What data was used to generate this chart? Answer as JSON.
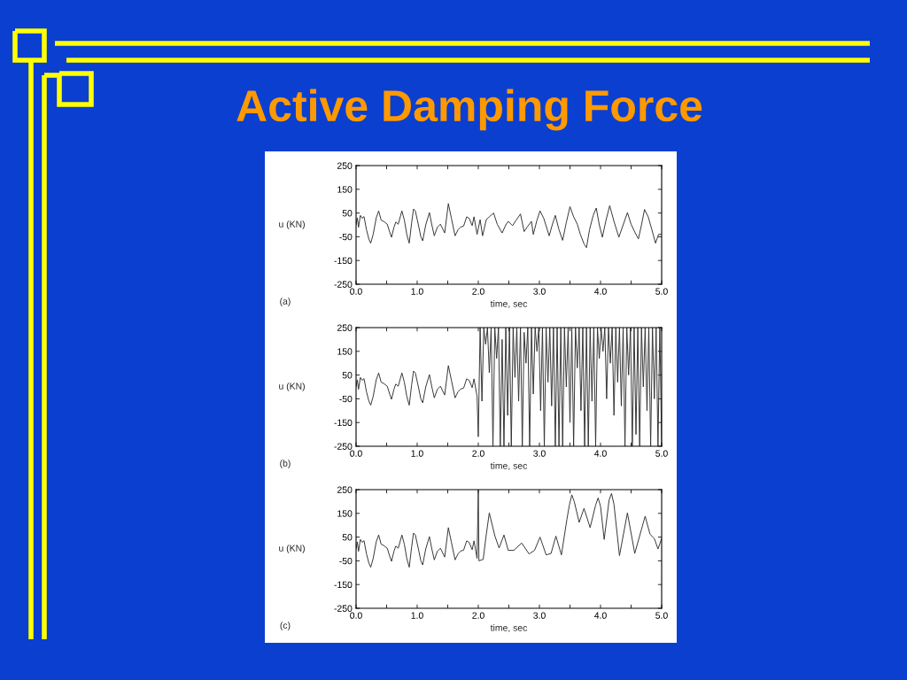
{
  "chart_data": [
    {
      "type": "line",
      "title": "Active Damping Force",
      "xlabel": "time, sec",
      "ylabel": "u (KN)",
      "annotations": [
        "(a)"
      ],
      "x": [
        0.0,
        0.02,
        0.04,
        0.07,
        0.1,
        0.13,
        0.17,
        0.21,
        0.24,
        0.28,
        0.33,
        0.37,
        0.41,
        0.45,
        0.51,
        0.55,
        0.58,
        0.62,
        0.65,
        0.69,
        0.75,
        0.79,
        0.83,
        0.87,
        0.91,
        0.94,
        0.97,
        1.02,
        1.06,
        1.09,
        1.14,
        1.2,
        1.24,
        1.28,
        1.33,
        1.38,
        1.45,
        1.51,
        1.56,
        1.62,
        1.67,
        1.71,
        1.76,
        1.81,
        1.85,
        1.9,
        1.93,
        1.98,
        2.03,
        2.07,
        2.13,
        2.18,
        2.25,
        2.31,
        2.39,
        2.45,
        2.49,
        2.56,
        2.62,
        2.69,
        2.75,
        2.8,
        2.87,
        2.9,
        2.96,
        3.01,
        3.07,
        3.16,
        3.21,
        3.26,
        3.32,
        3.38,
        3.44,
        3.5,
        3.56,
        3.62,
        3.67,
        3.73,
        3.77,
        3.82,
        3.88,
        3.93,
        3.98,
        4.03,
        4.09,
        4.15,
        4.22,
        4.3,
        4.37,
        4.44,
        4.5,
        4.56,
        4.62,
        4.67,
        4.72,
        4.78,
        4.84,
        4.9,
        4.95,
        5.0
      ],
      "series": [
        {
          "color": "#333333",
          "values": [
            0,
            30,
            -10,
            40,
            28,
            35,
            -20,
            -60,
            -77,
            -40,
            30,
            59,
            20,
            15,
            3,
            -30,
            -52,
            -10,
            12,
            3,
            59,
            20,
            -40,
            -77,
            10,
            67,
            59,
            0,
            -50,
            -67,
            0,
            52,
            0,
            -46,
            -10,
            3,
            -34,
            90,
            28,
            -46,
            -20,
            -9,
            -5,
            34,
            28,
            -3,
            34,
            -40,
            22,
            -46,
            22,
            34,
            50,
            3,
            -34,
            0,
            15,
            -3,
            20,
            46,
            -28,
            -9,
            15,
            -40,
            20,
            59,
            28,
            -46,
            0,
            40,
            -20,
            -65,
            10,
            77,
            34,
            3,
            -40,
            -80,
            -96,
            -20,
            40,
            71,
            0,
            -52,
            20,
            81,
            15,
            -52,
            0,
            52,
            3,
            -30,
            -59,
            0,
            65,
            34,
            -20,
            -77,
            -40,
            -40
          ]
        }
      ],
      "xlim": [
        0,
        5
      ],
      "ylim": [
        -250,
        250
      ],
      "xticks": [
        {
          "value": 0,
          "label": "0.0"
        },
        {
          "value": 0.5,
          "label": null
        },
        {
          "value": 1,
          "label": "1.0"
        },
        {
          "value": 1.5,
          "label": null
        },
        {
          "value": 2,
          "label": "2.0"
        },
        {
          "value": 2.5,
          "label": null
        },
        {
          "value": 3,
          "label": "3.0"
        },
        {
          "value": 3.5,
          "label": null
        },
        {
          "value": 4,
          "label": "4.0"
        },
        {
          "value": 4.5,
          "label": null
        },
        {
          "value": 5,
          "label": "5.0"
        }
      ],
      "yticks": [
        250,
        150,
        50,
        -50,
        -150,
        -250
      ]
    },
    {
      "type": "line",
      "xlabel": "time, sec",
      "ylabel": "u (KN)",
      "annotations": [
        "(b)"
      ],
      "x": [
        0.0,
        0.02,
        0.04,
        0.07,
        0.1,
        0.13,
        0.17,
        0.21,
        0.24,
        0.28,
        0.33,
        0.37,
        0.41,
        0.45,
        0.51,
        0.55,
        0.58,
        0.62,
        0.65,
        0.69,
        0.75,
        0.79,
        0.83,
        0.87,
        0.91,
        0.94,
        0.97,
        1.02,
        1.06,
        1.09,
        1.14,
        1.2,
        1.24,
        1.28,
        1.33,
        1.38,
        1.45,
        1.51,
        1.56,
        1.62,
        1.67,
        1.71,
        1.76,
        1.81,
        1.85,
        1.9,
        1.93,
        1.98,
        2.0,
        2.03,
        2.06,
        2.09,
        2.12,
        2.15,
        2.18,
        2.21,
        2.24,
        2.27,
        2.3,
        2.33,
        2.36,
        2.39,
        2.42,
        2.45,
        2.48,
        2.51,
        2.54,
        2.57,
        2.6,
        2.63,
        2.66,
        2.69,
        2.72,
        2.75,
        2.78,
        2.81,
        2.84,
        2.87,
        2.9,
        2.93,
        2.96,
        2.99,
        3.02,
        3.05,
        3.08,
        3.11,
        3.14,
        3.17,
        3.2,
        3.23,
        3.26,
        3.29,
        3.32,
        3.35,
        3.38,
        3.41,
        3.44,
        3.47,
        3.5,
        3.53,
        3.56,
        3.59,
        3.62,
        3.65,
        3.68,
        3.71,
        3.74,
        3.77,
        3.8,
        3.83,
        3.86,
        3.89,
        3.92,
        3.95,
        3.98,
        4.01,
        4.04,
        4.07,
        4.1,
        4.13,
        4.16,
        4.19,
        4.22,
        4.25,
        4.28,
        4.31,
        4.34,
        4.37,
        4.4,
        4.43,
        4.46,
        4.49,
        4.52,
        4.55,
        4.58,
        4.61,
        4.64,
        4.67,
        4.7,
        4.73,
        4.76,
        4.79,
        4.82,
        4.85,
        4.88,
        4.91,
        4.94,
        4.97,
        5.0
      ],
      "series": [
        {
          "color": "#333333",
          "values": [
            0,
            30,
            -10,
            40,
            28,
            35,
            -20,
            -60,
            -77,
            -40,
            30,
            59,
            20,
            15,
            3,
            -30,
            -52,
            -10,
            12,
            3,
            59,
            20,
            -40,
            -77,
            10,
            67,
            59,
            0,
            -50,
            -67,
            0,
            52,
            0,
            -46,
            -10,
            3,
            -34,
            90,
            28,
            -46,
            -20,
            -9,
            -5,
            34,
            28,
            -3,
            34,
            -40,
            -210,
            250,
            -60,
            250,
            180,
            250,
            60,
            250,
            -250,
            250,
            120,
            250,
            -250,
            200,
            -250,
            250,
            -120,
            250,
            -250,
            250,
            40,
            250,
            -60,
            250,
            -250,
            230,
            100,
            250,
            -250,
            250,
            -30,
            250,
            150,
            250,
            -100,
            250,
            -250,
            250,
            20,
            250,
            -80,
            250,
            -250,
            250,
            -250,
            250,
            -250,
            250,
            0,
            250,
            -150,
            250,
            -250,
            250,
            80,
            250,
            -100,
            250,
            -250,
            250,
            -250,
            250,
            -60,
            250,
            -250,
            250,
            120,
            250,
            150,
            250,
            -50,
            250,
            100,
            250,
            -120,
            250,
            20,
            250,
            -80,
            250,
            -250,
            250,
            50,
            250,
            -250,
            250,
            -200,
            250,
            -250,
            250,
            0,
            250,
            -100,
            250,
            -250,
            250,
            -50,
            250,
            -250,
            250,
            -250
          ]
        }
      ],
      "xlim": [
        0,
        5
      ],
      "ylim": [
        -250,
        250
      ],
      "xticks": [
        {
          "value": 0,
          "label": "0.0"
        },
        {
          "value": 0.5,
          "label": null
        },
        {
          "value": 1,
          "label": "1.0"
        },
        {
          "value": 1.5,
          "label": null
        },
        {
          "value": 2,
          "label": "2.0"
        },
        {
          "value": 2.5,
          "label": null
        },
        {
          "value": 3,
          "label": "3.0"
        },
        {
          "value": 3.5,
          "label": null
        },
        {
          "value": 4,
          "label": "4.0"
        },
        {
          "value": 4.5,
          "label": null
        },
        {
          "value": 5,
          "label": "5.0"
        }
      ],
      "yticks": [
        250,
        150,
        50,
        -50,
        -150,
        -250
      ]
    },
    {
      "type": "line",
      "xlabel": "time, sec",
      "ylabel": "u (KN)",
      "annotations": [
        "(c)"
      ],
      "x": [
        0.0,
        0.02,
        0.04,
        0.07,
        0.1,
        0.13,
        0.17,
        0.21,
        0.24,
        0.28,
        0.33,
        0.37,
        0.41,
        0.45,
        0.51,
        0.55,
        0.58,
        0.62,
        0.65,
        0.69,
        0.75,
        0.79,
        0.83,
        0.87,
        0.91,
        0.94,
        0.97,
        1.02,
        1.06,
        1.09,
        1.14,
        1.2,
        1.24,
        1.28,
        1.33,
        1.38,
        1.45,
        1.51,
        1.56,
        1.62,
        1.67,
        1.71,
        1.76,
        1.81,
        1.85,
        1.9,
        1.93,
        1.98,
        2.0,
        2.01,
        2.08,
        2.13,
        2.18,
        2.27,
        2.34,
        2.42,
        2.49,
        2.58,
        2.71,
        2.83,
        2.92,
        3.01,
        3.11,
        3.19,
        3.27,
        3.36,
        3.45,
        3.49,
        3.53,
        3.57,
        3.65,
        3.73,
        3.83,
        3.92,
        3.96,
        4.0,
        4.06,
        4.14,
        4.18,
        4.22,
        4.31,
        4.44,
        4.56,
        4.73,
        4.81,
        4.88,
        4.94,
        5.0
      ],
      "series": [
        {
          "color": "#333333",
          "values": [
            0,
            30,
            -10,
            40,
            28,
            35,
            -20,
            -60,
            -77,
            -40,
            30,
            59,
            20,
            15,
            3,
            -30,
            -52,
            -10,
            12,
            3,
            59,
            20,
            -40,
            -77,
            10,
            67,
            59,
            0,
            -50,
            -67,
            0,
            52,
            0,
            -46,
            -10,
            3,
            -34,
            90,
            28,
            -46,
            -20,
            -9,
            -5,
            34,
            28,
            -3,
            34,
            -40,
            250,
            -50,
            -44,
            60,
            152,
            56,
            4,
            59,
            -6,
            -6,
            25,
            -21,
            -6,
            50,
            -25,
            -19,
            54,
            -25,
            125,
            185,
            228,
            200,
            112,
            171,
            90,
            185,
            215,
            180,
            40,
            206,
            234,
            188,
            -28,
            152,
            -19,
            138,
            62,
            44,
            0,
            44
          ]
        }
      ],
      "xlim": [
        0,
        5
      ],
      "ylim": [
        -250,
        250
      ],
      "xticks": [
        {
          "value": 0,
          "label": "0.0"
        },
        {
          "value": 0.5,
          "label": null
        },
        {
          "value": 1,
          "label": "1.0"
        },
        {
          "value": 1.5,
          "label": null
        },
        {
          "value": 2,
          "label": "2.0"
        },
        {
          "value": 2.5,
          "label": null
        },
        {
          "value": 3,
          "label": "3.0"
        },
        {
          "value": 3.5,
          "label": null
        },
        {
          "value": 4,
          "label": "4.0"
        },
        {
          "value": 4.5,
          "label": null
        },
        {
          "value": 5,
          "label": "5.0"
        }
      ],
      "yticks": [
        250,
        150,
        50,
        -50,
        -150,
        -250
      ]
    }
  ]
}
